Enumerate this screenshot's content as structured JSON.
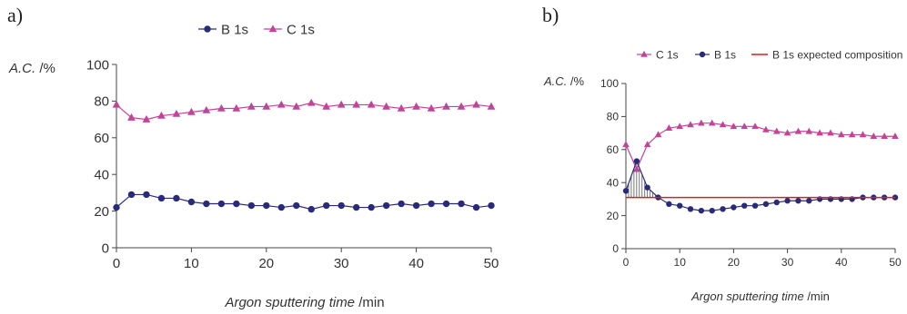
{
  "chart_data": [
    {
      "panel_label": "a)",
      "type": "line",
      "ylabel_main": "A.C.",
      "ylabel_unit": " /%",
      "xlabel_main": "Argon sputtering time",
      "xlabel_unit": " /min",
      "xlim": [
        0,
        50
      ],
      "ylim": [
        0,
        100
      ],
      "xticks": [
        0,
        10,
        20,
        30,
        40,
        50
      ],
      "yticks": [
        0,
        20,
        40,
        60,
        80,
        100
      ],
      "grid": false,
      "legend_position": "top",
      "x": [
        0,
        2,
        4,
        6,
        8,
        10,
        12,
        14,
        16,
        18,
        20,
        22,
        24,
        26,
        28,
        30,
        32,
        34,
        36,
        38,
        40,
        42,
        44,
        46,
        48,
        50
      ],
      "series": [
        {
          "name": "B 1s",
          "color": "#2a2a7a",
          "marker": "circle",
          "values": [
            22,
            29,
            29,
            27,
            27,
            25,
            24,
            24,
            24,
            23,
            23,
            22,
            23,
            21,
            23,
            23,
            22,
            22,
            23,
            24,
            23,
            24,
            24,
            24,
            22,
            23
          ]
        },
        {
          "name": "C 1s",
          "color": "#c2449a",
          "marker": "triangle",
          "values": [
            78,
            71,
            70,
            72,
            73,
            74,
            75,
            76,
            76,
            77,
            77,
            78,
            77,
            79,
            77,
            78,
            78,
            78,
            77,
            76,
            77,
            76,
            77,
            77,
            78,
            77
          ]
        }
      ]
    },
    {
      "panel_label": "b)",
      "type": "line",
      "ylabel_main": "A.C.",
      "ylabel_unit": " /%",
      "xlabel_main": "Argon sputtering time",
      "xlabel_unit": " /min",
      "xlim": [
        0,
        50
      ],
      "ylim": [
        0,
        100
      ],
      "xticks": [
        0,
        10,
        20,
        30,
        40,
        50
      ],
      "yticks": [
        0,
        20,
        40,
        60,
        80,
        100
      ],
      "grid": false,
      "legend_position": "top",
      "x": [
        0,
        2,
        4,
        6,
        8,
        10,
        12,
        14,
        16,
        18,
        20,
        22,
        24,
        26,
        28,
        30,
        32,
        34,
        36,
        38,
        40,
        42,
        44,
        46,
        48,
        50
      ],
      "series": [
        {
          "name": "C 1s",
          "color": "#c2449a",
          "marker": "triangle",
          "values": [
            63,
            48,
            63,
            69,
            73,
            74,
            75,
            76,
            76,
            75,
            74,
            74,
            74,
            72,
            71,
            70,
            71,
            71,
            70,
            70,
            69,
            69,
            69,
            68,
            68,
            68
          ]
        },
        {
          "name": "B 1s",
          "color": "#2a2a7a",
          "marker": "circle",
          "values": [
            35,
            53,
            37,
            31,
            27,
            26,
            24,
            23,
            23,
            24,
            25,
            26,
            26,
            27,
            28,
            29,
            29,
            29,
            30,
            30,
            30,
            30,
            31,
            31,
            31,
            31
          ]
        },
        {
          "name": "B 1s expected composition",
          "color": "#e11d1d",
          "marker": "none",
          "constant": 31
        }
      ],
      "hatched_region": {
        "x_range": [
          0,
          6
        ],
        "description_color": "#555555"
      }
    }
  ]
}
